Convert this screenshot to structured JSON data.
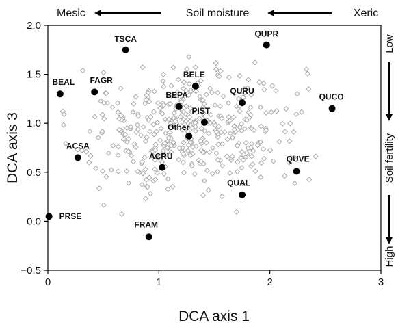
{
  "chart_data": {
    "type": "scatter",
    "xlabel": "DCA axis 1",
    "ylabel": "DCA axis 3",
    "xlim": [
      0,
      3
    ],
    "ylim": [
      -0.5,
      2.0
    ],
    "xticks": [
      "0",
      "1",
      "2",
      "3"
    ],
    "yticks": [
      "−0.5",
      "0.0",
      "0.5",
      "1.0",
      "1.5",
      "2.0"
    ],
    "xtick_values": [
      0,
      1,
      2,
      3
    ],
    "ytick_values": [
      -0.5,
      0.0,
      0.5,
      1.0,
      1.5,
      2.0
    ],
    "top_gradient": {
      "left": "Mesic",
      "center": "Soil moisture",
      "right": "Xeric"
    },
    "right_gradient": {
      "top": "Low",
      "center": "Soil fertility",
      "bottom": "High"
    },
    "species": [
      {
        "label": "TSCA",
        "x": 0.7,
        "y": 1.75
      },
      {
        "label": "QUPR",
        "x": 1.97,
        "y": 1.8
      },
      {
        "label": "BEAL",
        "x": 0.11,
        "y": 1.3
      },
      {
        "label": "FAGR",
        "x": 0.42,
        "y": 1.32
      },
      {
        "label": "BELE",
        "x": 1.33,
        "y": 1.38
      },
      {
        "label": "BEPA",
        "x": 1.18,
        "y": 1.17
      },
      {
        "label": "QURU",
        "x": 1.75,
        "y": 1.21
      },
      {
        "label": "QUCO",
        "x": 2.56,
        "y": 1.15
      },
      {
        "label": "PIST",
        "x": 1.41,
        "y": 1.01
      },
      {
        "label": "Other",
        "x": 1.27,
        "y": 0.87
      },
      {
        "label": "ACSA",
        "x": 0.27,
        "y": 0.65
      },
      {
        "label": "ACRU",
        "x": 1.03,
        "y": 0.55
      },
      {
        "label": "QUVE",
        "x": 2.24,
        "y": 0.51
      },
      {
        "label": "QUAL",
        "x": 1.75,
        "y": 0.27
      },
      {
        "label": "PRSE",
        "x": 0.01,
        "y": 0.05
      },
      {
        "label": "FRAM",
        "x": 0.91,
        "y": -0.16
      }
    ]
  }
}
